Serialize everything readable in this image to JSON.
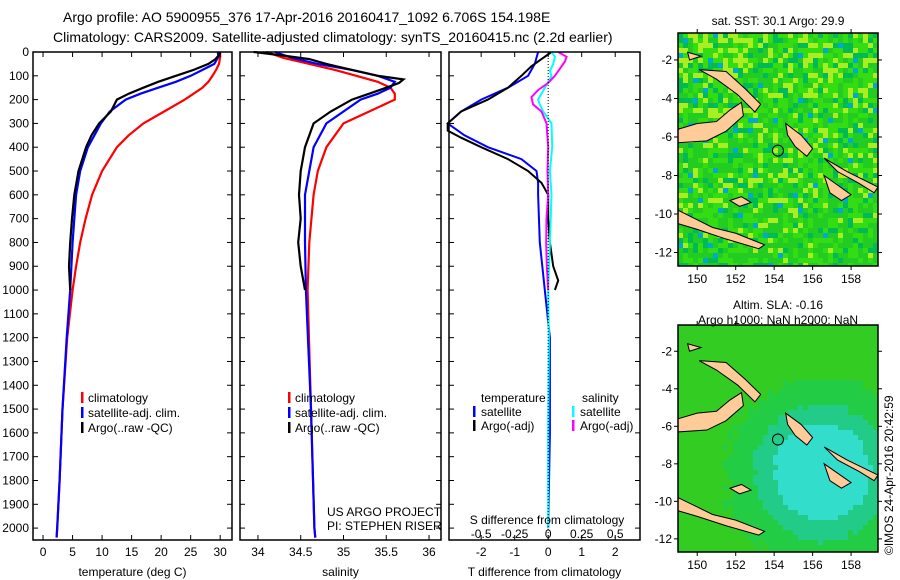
{
  "title_line1": "Argo profile: AO 5900955_376 17-Apr-2016 20160417_1092 6.706S 154.198E",
  "title_line2": "Climatology: CARS2009. Satellite-adjusted climatology: synTS_20160415.nc (2.2d earlier)",
  "colors": {
    "climatology": "#ff0000",
    "satellite": "#0000ff",
    "argo": "#000000",
    "s_satellite": "#00ffff",
    "s_argo": "#ff00ff",
    "land": "#ffcc99"
  },
  "chart_data": [
    {
      "type": "line",
      "name": "temperature-profile",
      "xlabel": "temperature (deg C)",
      "ylabel": "",
      "xlim": [
        -1.7,
        32
      ],
      "ylim": [
        2050,
        0
      ],
      "xticks": [
        0,
        5,
        10,
        15,
        20,
        25,
        30
      ],
      "yticks": [
        0,
        100,
        200,
        300,
        400,
        500,
        600,
        700,
        800,
        900,
        1000,
        1100,
        1200,
        1300,
        1400,
        1500,
        1600,
        1700,
        1800,
        1900,
        2000
      ],
      "legend": [
        "climatology",
        "satellite-adj. clim.",
        "Argo(..raw -QC)"
      ],
      "series": [
        {
          "name": "climatology",
          "color": "#ff0000",
          "depth": [
            0,
            20,
            50,
            75,
            100,
            125,
            150,
            175,
            200,
            250,
            300,
            350,
            400,
            500,
            600,
            700,
            800,
            900,
            1000,
            1200,
            1500,
            1800,
            2000,
            2040
          ],
          "values": [
            30,
            30,
            29.8,
            29.3,
            28.7,
            28,
            27,
            25.5,
            24,
            20.5,
            17,
            14.5,
            12.5,
            10,
            8.3,
            7.2,
            6.3,
            5.6,
            5,
            4.1,
            3.3,
            2.8,
            2.4,
            2.3
          ]
        },
        {
          "name": "satellite-adj. clim.",
          "color": "#0000ff",
          "depth": [
            0,
            20,
            50,
            75,
            100,
            125,
            150,
            175,
            200,
            250,
            300,
            350,
            400,
            500,
            600,
            700,
            800,
            900,
            1000,
            1200,
            1500,
            1800,
            2000,
            2040
          ],
          "values": [
            29.6,
            29.7,
            29,
            27,
            25,
            22.5,
            19.5,
            16.5,
            14,
            11.3,
            9.8,
            8.7,
            7.6,
            6.3,
            5.6,
            5.3,
            5,
            4.8,
            4.6,
            4,
            3.3,
            2.8,
            2.4,
            2.3
          ]
        },
        {
          "name": "Argo(..raw -QC)",
          "color": "#000000",
          "depth": [
            0,
            10,
            30,
            50,
            75,
            100,
            125,
            150,
            175,
            200,
            250,
            300,
            350,
            400,
            500,
            600,
            700,
            800,
            900,
            1000
          ],
          "values": [
            30,
            29.9,
            29.2,
            28,
            25.5,
            22.5,
            19.5,
            17,
            14.5,
            12.5,
            11.5,
            9.5,
            8.2,
            7.3,
            6,
            5.3,
            4.9,
            4.6,
            4.4,
            4.6
          ]
        }
      ]
    },
    {
      "type": "line",
      "name": "salinity-profile",
      "xlabel": "salinity",
      "xlim": [
        33.79,
        36.14
      ],
      "ylim": [
        2050,
        0
      ],
      "xticks": [
        34,
        34.5,
        35,
        35.5,
        36
      ],
      "legend": [
        "climatology",
        "satellite-adj. clim.",
        "Argo(..raw -QC)"
      ],
      "annotation": [
        "US ARGO PROJECT",
        "PI: STEPHEN RISER"
      ],
      "series": [
        {
          "name": "climatology",
          "color": "#ff0000",
          "depth": [
            0,
            25,
            50,
            75,
            100,
            125,
            150,
            175,
            200,
            250,
            300,
            400,
            500,
            600,
            800,
            1000,
            1500,
            2000,
            2040
          ],
          "values": [
            34.1,
            34.3,
            34.6,
            34.9,
            35.15,
            35.4,
            35.55,
            35.6,
            35.6,
            35.3,
            35.0,
            34.8,
            34.7,
            34.65,
            34.6,
            34.58,
            34.62,
            34.66,
            34.67
          ]
        },
        {
          "name": "satellite-adj. clim.",
          "color": "#0000ff",
          "depth": [
            0,
            25,
            50,
            75,
            100,
            125,
            150,
            175,
            200,
            250,
            300,
            400,
            500,
            600,
            800,
            1000,
            1500,
            2000,
            2040
          ],
          "values": [
            34.2,
            34.4,
            34.7,
            35.1,
            35.4,
            35.6,
            35.55,
            35.4,
            35.2,
            35.0,
            34.8,
            34.65,
            34.6,
            34.55,
            34.55,
            34.56,
            34.62,
            34.66,
            34.67
          ]
        },
        {
          "name": "Argo(..raw -QC)",
          "color": "#000000",
          "depth": [
            0,
            15,
            30,
            50,
            75,
            100,
            115,
            130,
            150,
            175,
            200,
            250,
            300,
            400,
            500,
            600,
            700,
            800,
            900,
            1000
          ],
          "values": [
            33.95,
            34.3,
            34.6,
            34.8,
            35.1,
            35.4,
            35.7,
            35.65,
            35.5,
            35.3,
            35.1,
            34.85,
            34.65,
            34.55,
            34.5,
            34.48,
            34.5,
            34.47,
            34.5,
            34.55
          ]
        }
      ]
    },
    {
      "type": "line",
      "name": "difference-profile",
      "xlabel": "T difference from climatology",
      "xlabel2": "S difference from climatology",
      "xlim": [
        -2.96,
        2.74
      ],
      "ylim": [
        2050,
        0
      ],
      "xticks": [
        -2,
        -1,
        0,
        1,
        2
      ],
      "xticks_s": [
        -0.5,
        -0.25,
        0,
        0.25,
        0.5
      ],
      "legend_headers": [
        "temperature",
        "salinity"
      ],
      "legend": [
        "satellite",
        "Argo(-adj)",
        "satellite",
        "Argo(-adj)"
      ],
      "series": [
        {
          "name": "T satellite",
          "color": "#0000ff",
          "depth": [
            0,
            50,
            100,
            150,
            200,
            250,
            300,
            350,
            400,
            450,
            500,
            550,
            600,
            800,
            1000,
            1200,
            1600,
            2000
          ],
          "values": [
            -0.3,
            -0.4,
            -0.6,
            -1.2,
            -2.0,
            -2.6,
            -3.0,
            -2.5,
            -1.8,
            -0.8,
            -0.35,
            -0.3,
            -0.3,
            -0.25,
            -0.1,
            0.05,
            0.05,
            0
          ]
        },
        {
          "name": "T Argo(-adj)",
          "color": "#000000",
          "depth": [
            0,
            30,
            60,
            100,
            150,
            200,
            250,
            300,
            330,
            360,
            400,
            450,
            500,
            550,
            600,
            700,
            800,
            900,
            960,
            1000
          ],
          "values": [
            0.1,
            -0.2,
            -0.5,
            -0.8,
            -1.2,
            -1.8,
            -2.6,
            -3.0,
            -3.0,
            -2.6,
            -2.0,
            -1.2,
            -0.6,
            -0.2,
            0.0,
            0.0,
            0.05,
            0.15,
            0.3,
            0.2
          ]
        },
        {
          "name": "S satellite",
          "color": "#00ffff",
          "depth": [
            0,
            20,
            50,
            80,
            100,
            150,
            200,
            220,
            250,
            300,
            400,
            500,
            600,
            800,
            1000,
            1200,
            1600,
            2000
          ],
          "values": [
            0.1,
            0.2,
            0.15,
            0.05,
            0.1,
            -0.1,
            -0.3,
            -0.25,
            -0.15,
            0.1,
            0.12,
            0.05,
            0.1,
            0.05,
            0,
            0.02,
            0,
            0
          ]
        },
        {
          "name": "S Argo(-adj)",
          "color": "#ff00ff",
          "depth": [
            0,
            20,
            40,
            70,
            100,
            130,
            160,
            190,
            220,
            250,
            300,
            400,
            500,
            600,
            700,
            800,
            900,
            1000
          ],
          "values": [
            0.3,
            0.55,
            0.5,
            0.35,
            0.2,
            0,
            -0.3,
            -0.5,
            -0.45,
            -0.2,
            -0.05,
            0,
            -0.02,
            0.0,
            -0.05,
            -0.06,
            -0.04,
            0
          ]
        }
      ]
    },
    {
      "type": "heatmap",
      "name": "sst-map",
      "title": "sat. SST: 30.1  Argo: 29.9",
      "xlim": [
        149,
        159.4
      ],
      "ylim": [
        -12.7,
        -0.6
      ],
      "xticks": [
        150,
        152,
        154,
        156,
        158
      ],
      "yticks": [
        -2,
        -4,
        -6,
        -8,
        -10,
        -12
      ],
      "marker": {
        "lon": 154.198,
        "lat": -6.706
      }
    },
    {
      "type": "heatmap",
      "name": "sla-map",
      "title": "Altim. SLA: -0.16",
      "subtitle": "Argo h1000: NaN h2000: NaN",
      "xlim": [
        149,
        159.4
      ],
      "ylim": [
        -12.7,
        -0.6
      ],
      "xticks": [
        150,
        152,
        154,
        156,
        158
      ],
      "yticks": [
        -2,
        -4,
        -6,
        -8,
        -10,
        -12
      ],
      "marker": {
        "lon": 154.198,
        "lat": -6.706
      }
    }
  ],
  "credit": "©IMOS 24-Apr-2016 20:42:59"
}
